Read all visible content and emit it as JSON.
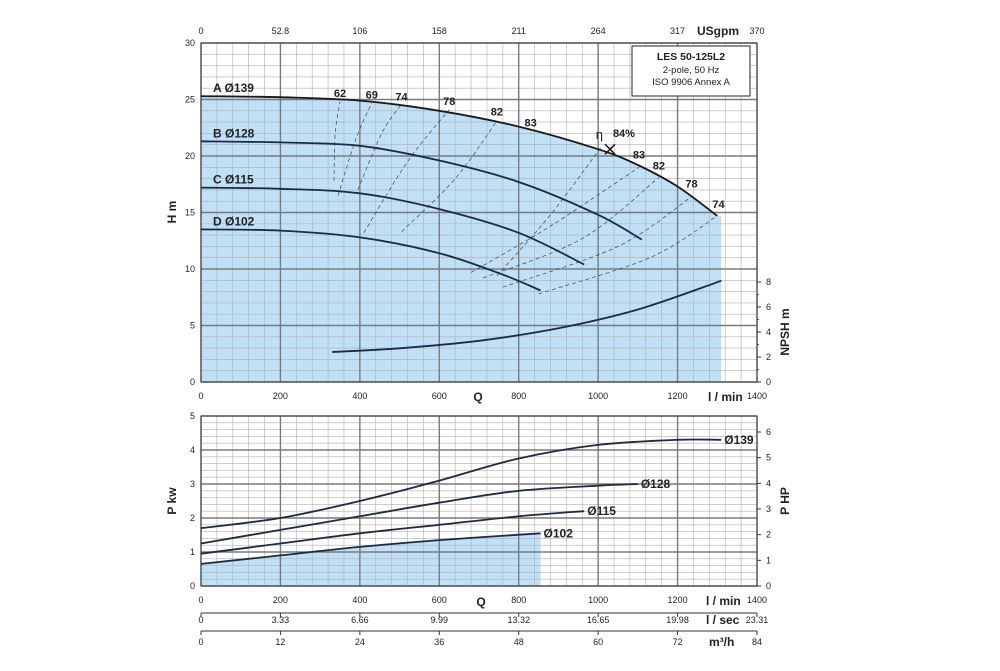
{
  "chart_data": [
    {
      "type": "line",
      "panel": "head",
      "title_box": {
        "line1": "LES 50-125L2",
        "line2": "2-pole, 50 Hz",
        "line3": "ISO 9906 Annex A"
      },
      "x_unit": "l / min",
      "x_label": "Q",
      "x_ticks": [
        0,
        200,
        400,
        600,
        800,
        1000,
        1200,
        1400
      ],
      "xlim": [
        0,
        1400
      ],
      "top_axis": {
        "unit": "USgpm",
        "ticks": [
          "0",
          "52.8",
          "106",
          "158",
          "211",
          "264",
          "317",
          "370"
        ]
      },
      "ylabel": "H m",
      "ylim": [
        0,
        30
      ],
      "y_ticks": [
        0,
        5,
        10,
        15,
        20,
        25,
        30
      ],
      "right_axis": {
        "label": "NPSH m",
        "ticks": [
          0,
          2,
          4,
          6,
          8
        ],
        "ylim": [
          0,
          8
        ]
      },
      "series": [
        {
          "name": "A Ø139",
          "x": [
            0,
            200,
            400,
            600,
            800,
            1000,
            1100,
            1200,
            1300
          ],
          "y": [
            25.3,
            25.2,
            24.9,
            24.0,
            22.6,
            20.6,
            19.2,
            17.3,
            14.7
          ]
        },
        {
          "name": "B Ø128",
          "x": [
            0,
            200,
            400,
            600,
            800,
            1000,
            1110
          ],
          "y": [
            21.3,
            21.2,
            20.9,
            19.6,
            17.7,
            14.8,
            12.6
          ]
        },
        {
          "name": "C Ø115",
          "x": [
            0,
            200,
            400,
            600,
            800,
            965
          ],
          "y": [
            17.2,
            17.1,
            16.7,
            15.3,
            13.2,
            10.4
          ]
        },
        {
          "name": "D Ø102",
          "x": [
            0,
            200,
            400,
            600,
            760,
            855
          ],
          "y": [
            13.5,
            13.4,
            12.8,
            11.4,
            9.5,
            8.1
          ]
        }
      ],
      "npsh": {
        "x": [
          330,
          500,
          700,
          900,
          1100,
          1310
        ],
        "y": [
          2.4,
          2.7,
          3.3,
          4.3,
          5.8,
          8.1
        ]
      },
      "efficiency_labels": [
        {
          "text": "62",
          "x": 350,
          "y": 25.2
        },
        {
          "text": "69",
          "x": 430,
          "y": 25.1
        },
        {
          "text": "74",
          "x": 505,
          "y": 24.9
        },
        {
          "text": "78",
          "x": 625,
          "y": 24.5
        },
        {
          "text": "82",
          "x": 745,
          "y": 23.6
        },
        {
          "text": "83",
          "x": 830,
          "y": 22.6
        },
        {
          "text": "84%",
          "x": 1065,
          "y": 21.7
        },
        {
          "text": "83",
          "x": 1103,
          "y": 19.8
        },
        {
          "text": "82",
          "x": 1153,
          "y": 18.8
        },
        {
          "text": "78",
          "x": 1235,
          "y": 17.2
        },
        {
          "text": "74",
          "x": 1303,
          "y": 15.4
        }
      ],
      "bep": {
        "x": 1030,
        "y": 20.6
      },
      "shaded_max_x": 1310
    },
    {
      "type": "line",
      "panel": "power",
      "x_unit": "l / min",
      "x_label": "Q",
      "x_ticks": [
        0,
        200,
        400,
        600,
        800,
        1000,
        1200,
        1400
      ],
      "xlim": [
        0,
        1400
      ],
      "ylabel": "P kw",
      "ylim": [
        0,
        5
      ],
      "y_ticks": [
        0,
        1,
        2,
        3,
        4,
        5
      ],
      "right_axis": {
        "label": "P HP",
        "ticks": [
          0,
          1,
          2,
          3,
          4,
          5,
          6
        ]
      },
      "series": [
        {
          "name": "Ø139",
          "x": [
            0,
            200,
            400,
            600,
            800,
            1000,
            1200,
            1310
          ],
          "y": [
            1.7,
            2.0,
            2.5,
            3.1,
            3.75,
            4.15,
            4.3,
            4.3
          ]
        },
        {
          "name": "Ø128",
          "x": [
            0,
            200,
            400,
            600,
            800,
            1000,
            1100
          ],
          "y": [
            1.25,
            1.65,
            2.05,
            2.45,
            2.8,
            2.95,
            3.0
          ]
        },
        {
          "name": "Ø115",
          "x": [
            0,
            200,
            400,
            600,
            800,
            965
          ],
          "y": [
            0.95,
            1.25,
            1.55,
            1.8,
            2.05,
            2.2
          ]
        },
        {
          "name": "Ø102",
          "x": [
            0,
            200,
            400,
            600,
            855
          ],
          "y": [
            0.65,
            0.9,
            1.15,
            1.35,
            1.55
          ]
        }
      ],
      "shaded_max_x": 855,
      "extra_axes": [
        {
          "unit": "l / sec",
          "ticks": [
            "0",
            "3.33",
            "6.66",
            "9.99",
            "13.32",
            "16.65",
            "19.98",
            "23.31"
          ]
        },
        {
          "unit": "m³/h",
          "ticks": [
            "0",
            "12",
            "24",
            "36",
            "48",
            "60",
            "72",
            "84"
          ]
        }
      ]
    }
  ]
}
